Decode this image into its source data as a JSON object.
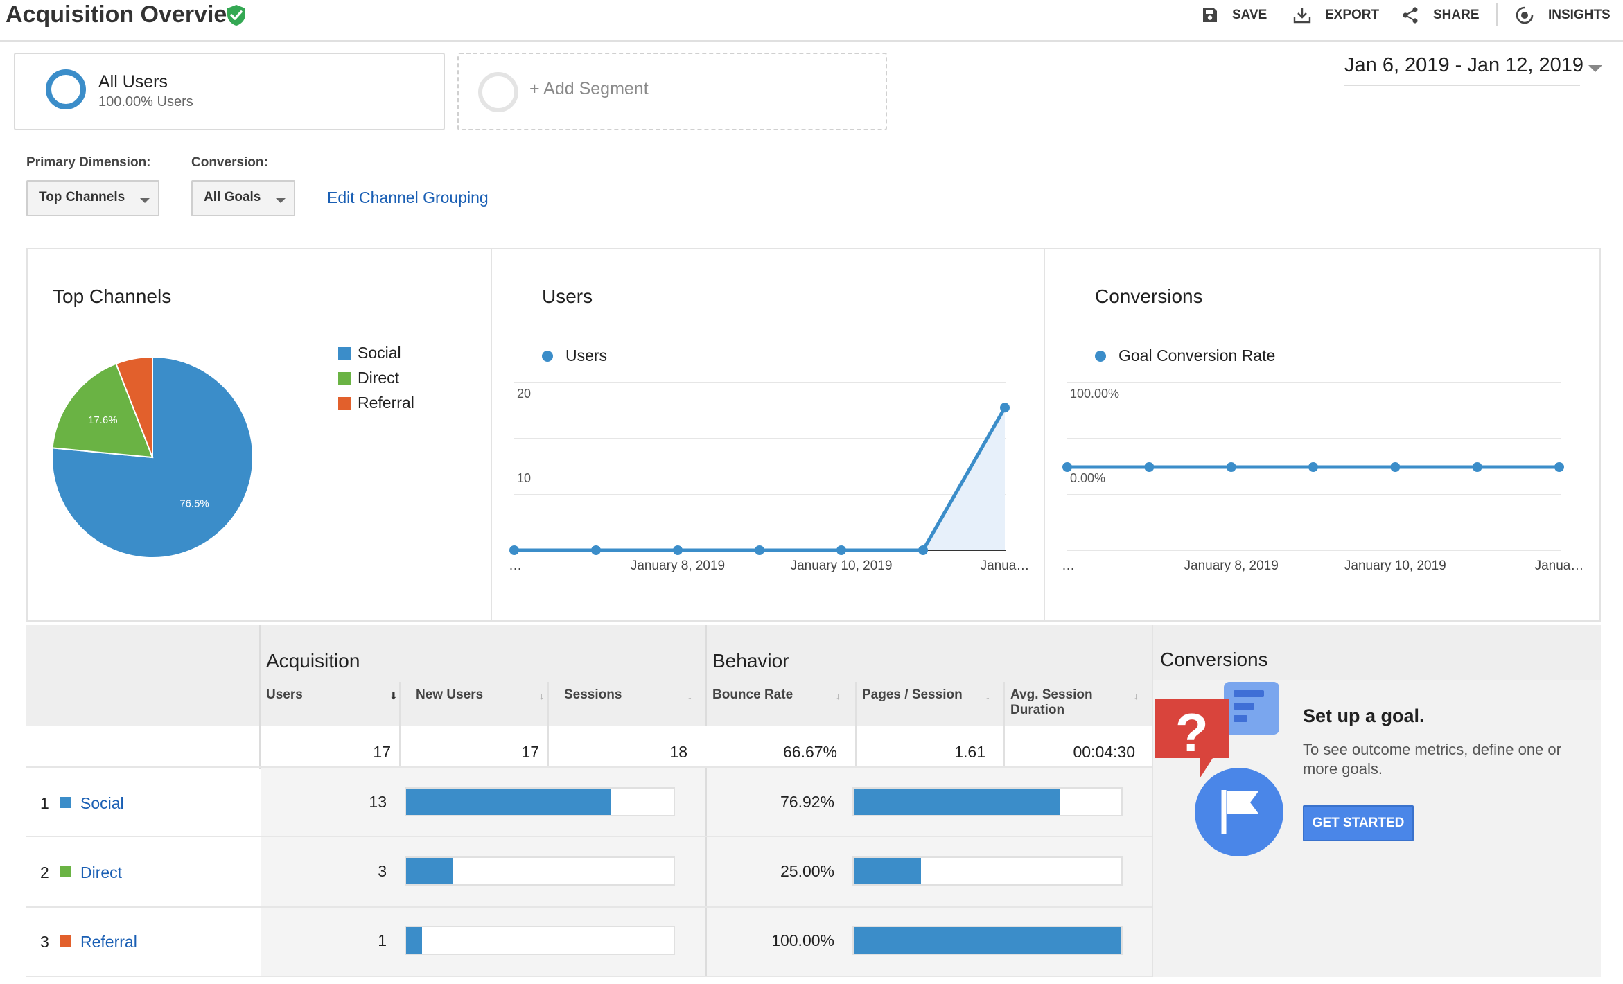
{
  "header": {
    "title": "Acquisition Overview",
    "actions": {
      "save": "SAVE",
      "export": "EXPORT",
      "share": "SHARE",
      "insights": "INSIGHTS"
    }
  },
  "segments": {
    "active": {
      "name": "All Users",
      "subtitle": "100.00% Users"
    },
    "add_label": "+ Add Segment"
  },
  "date_range": "Jan 6, 2019 - Jan 12, 2019",
  "controls": {
    "primary_dimension_label": "Primary Dimension:",
    "primary_dimension_value": "Top Channels",
    "conversion_label": "Conversion:",
    "conversion_value": "All Goals",
    "edit_link": "Edit Channel Grouping"
  },
  "colors": {
    "social": "#3b8dc9",
    "direct": "#6ab344",
    "referral": "#e2602c",
    "accent": "#4a86e8"
  },
  "chart_data": [
    {
      "type": "pie",
      "title": "Top Channels",
      "categories": [
        "Social",
        "Direct",
        "Referral"
      ],
      "values": [
        76.5,
        17.6,
        5.9
      ],
      "data_labels": [
        "76.5%",
        "17.6%",
        ""
      ],
      "legend": "right"
    },
    {
      "type": "area",
      "title": "Users",
      "series": [
        {
          "name": "Users",
          "values": [
            0,
            0,
            0,
            0,
            0,
            0,
            17
          ]
        }
      ],
      "y_ticks": [
        "20",
        "10"
      ],
      "ylim": [
        0,
        20
      ],
      "x_tick_labels": [
        "…",
        "January 8, 2019",
        "January 10, 2019",
        "Janua…"
      ],
      "grid": true
    },
    {
      "type": "line",
      "title": "Conversions",
      "series": [
        {
          "name": "Goal Conversion Rate",
          "values": [
            0,
            0,
            0,
            0,
            0,
            0,
            0
          ]
        }
      ],
      "y_ticks": [
        "100.00%",
        "0.00%"
      ],
      "x_tick_labels": [
        "…",
        "January 8, 2019",
        "January 10, 2019",
        "Janua…"
      ],
      "grid": true
    }
  ],
  "table": {
    "groups": {
      "acquisition": "Acquisition",
      "behavior": "Behavior",
      "conversions": "Conversions"
    },
    "columns": {
      "users": "Users",
      "new_users": "New Users",
      "sessions": "Sessions",
      "bounce_rate": "Bounce Rate",
      "pages_session": "Pages / Session",
      "avg_duration": "Avg. Session Duration"
    },
    "totals": {
      "users": "17",
      "new_users": "17",
      "sessions": "18",
      "bounce_rate": "66.67%",
      "pages_session": "1.61",
      "avg_duration": "00:04:30"
    },
    "rows": [
      {
        "index": "1",
        "channel": "Social",
        "users": "13",
        "users_share": 0.765,
        "bounce_rate": "76.92%",
        "bounce_share": 0.7692
      },
      {
        "index": "2",
        "channel": "Direct",
        "users": "3",
        "users_share": 0.176,
        "bounce_rate": "25.00%",
        "bounce_share": 0.25
      },
      {
        "index": "3",
        "channel": "Referral",
        "users": "1",
        "users_share": 0.059,
        "bounce_rate": "100.00%",
        "bounce_share": 1.0
      }
    ]
  },
  "goal_promo": {
    "title": "Set up a goal.",
    "description": "To see outcome metrics, define one or more goals.",
    "button": "GET STARTED"
  }
}
